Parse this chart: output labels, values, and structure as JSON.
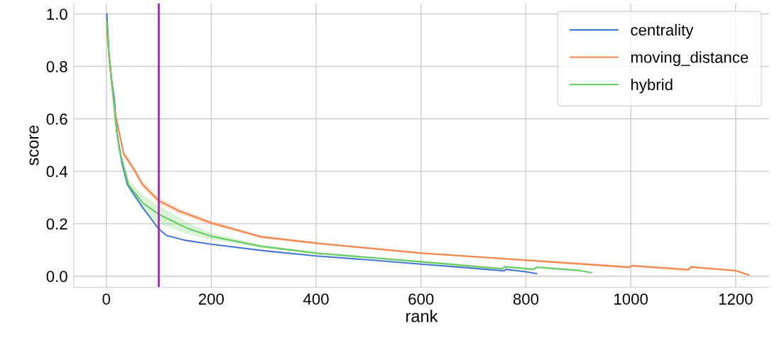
{
  "chart_data": {
    "type": "line",
    "xlabel": "rank",
    "ylabel": "score",
    "xlim": [
      -62,
      1264
    ],
    "ylim": [
      -0.042,
      1.04
    ],
    "xticks": [
      0,
      200,
      400,
      600,
      800,
      1000,
      1200
    ],
    "yticks": [
      {
        "value": 0.0,
        "label": "0.0"
      },
      {
        "value": 0.2,
        "label": "0.2"
      },
      {
        "value": 0.4,
        "label": "0.4"
      },
      {
        "value": 0.6,
        "label": "0.6"
      },
      {
        "value": 0.8,
        "label": "0.8"
      },
      {
        "value": 1.0,
        "label": "1.0"
      }
    ],
    "grid": true,
    "legend": "top right",
    "series": [
      {
        "name": "centrality",
        "color": "#4878d0",
        "x": [
          1,
          5,
          10,
          15,
          20,
          30,
          40,
          50,
          70,
          100,
          115,
          150,
          200,
          300,
          400,
          500,
          600,
          700,
          758,
          762,
          800,
          820
        ],
        "values": [
          1.0,
          0.85,
          0.75,
          0.68,
          0.55,
          0.43,
          0.35,
          0.32,
          0.26,
          0.18,
          0.155,
          0.137,
          0.122,
          0.097,
          0.077,
          0.062,
          0.046,
          0.03,
          0.02,
          0.026,
          0.017,
          0.01
        ]
      },
      {
        "name": "moving_distance",
        "color": "#ee854a",
        "x": [
          1,
          5,
          10,
          17,
          33,
          51,
          69,
          100,
          137,
          200,
          295,
          404,
          600,
          800,
          998,
          1002,
          1110,
          1115,
          1200,
          1225
        ],
        "values": [
          0.95,
          0.84,
          0.74,
          0.62,
          0.467,
          0.413,
          0.35,
          0.288,
          0.25,
          0.203,
          0.15,
          0.125,
          0.088,
          0.061,
          0.034,
          0.04,
          0.025,
          0.035,
          0.021,
          0.005
        ],
        "lower": [
          0.94,
          0.83,
          0.73,
          0.61,
          0.455,
          0.4,
          0.337,
          0.277,
          0.24,
          0.195,
          0.144,
          0.12,
          0.084,
          0.057,
          0.03,
          0.036,
          0.017,
          0.03,
          0.018,
          0.003
        ],
        "upper": [
          0.96,
          0.85,
          0.75,
          0.63,
          0.48,
          0.425,
          0.362,
          0.3,
          0.26,
          0.211,
          0.156,
          0.13,
          0.092,
          0.065,
          0.038,
          0.044,
          0.03,
          0.04,
          0.024,
          0.007
        ]
      },
      {
        "name": "hybrid",
        "color": "#6acc64",
        "x": [
          1,
          5,
          10,
          17,
          25,
          42,
          69,
          100,
          155,
          200,
          295,
          404,
          600,
          755,
          760,
          815,
          820,
          900,
          925
        ],
        "values": [
          0.97,
          0.85,
          0.75,
          0.6,
          0.48,
          0.35,
          0.28,
          0.236,
          0.182,
          0.152,
          0.114,
          0.087,
          0.055,
          0.028,
          0.036,
          0.026,
          0.034,
          0.022,
          0.013
        ],
        "lower": [
          0.96,
          0.84,
          0.74,
          0.59,
          0.46,
          0.33,
          0.25,
          0.2,
          0.16,
          0.14,
          0.108,
          0.083,
          0.051,
          0.024,
          0.032,
          0.022,
          0.03,
          0.019,
          0.011
        ],
        "upper": [
          0.98,
          0.86,
          0.76,
          0.61,
          0.5,
          0.37,
          0.31,
          0.27,
          0.205,
          0.165,
          0.12,
          0.091,
          0.059,
          0.032,
          0.04,
          0.03,
          0.038,
          0.025,
          0.015
        ]
      }
    ],
    "ref_lines": [
      {
        "axis": "x",
        "value": 100,
        "color": "#9b2fa6"
      }
    ]
  }
}
